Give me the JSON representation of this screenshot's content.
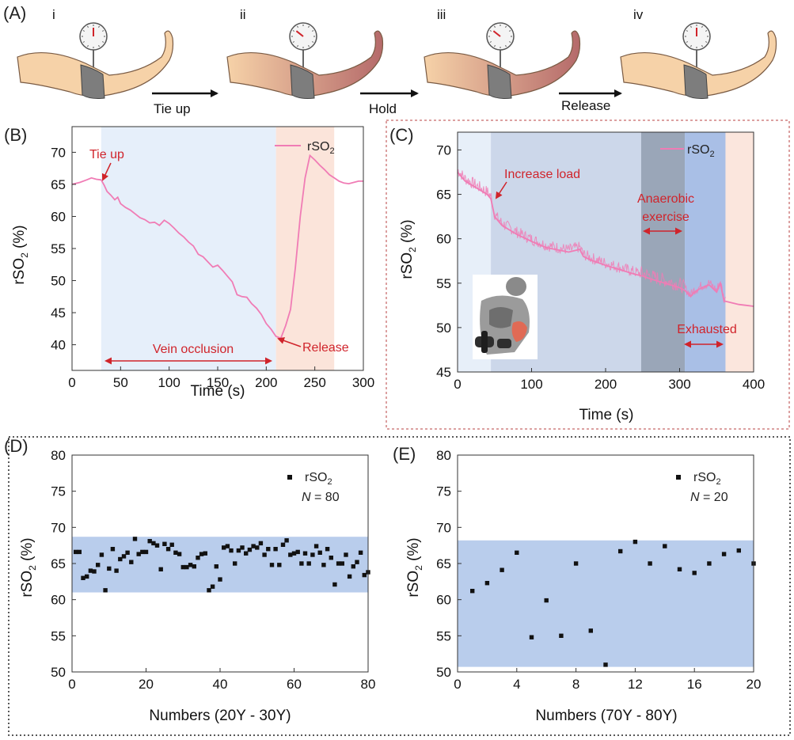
{
  "panels": {
    "a": {
      "letter": "(A)",
      "stage_labels": [
        "i",
        "ii",
        "iii",
        "iv"
      ],
      "steps": [
        "Tie up",
        "Hold",
        "Release"
      ]
    },
    "b": {
      "letter": "(B)"
    },
    "c": {
      "letter": "(C)"
    },
    "d": {
      "letter": "(D)"
    },
    "e": {
      "letter": "(E)"
    },
    "axis": {
      "rso_prefix": "rSO",
      "subscript": "2",
      "percent_unit": " (%)"
    },
    "legend": {
      "prefix": "rSO",
      "subscript": "2"
    },
    "colors": {
      "line": "#f07cb5",
      "band_blue": "#c9dcf2",
      "band_pink": "#fbe1d6",
      "dot_band": "#b9cdec",
      "annotation": "#d0242b"
    }
  },
  "chart_data": [
    {
      "panel": "B",
      "type": "line",
      "xlabel": "Time (s)",
      "ylabel": "rSO2 (%)",
      "xlim": [
        0,
        300
      ],
      "ylim": [
        36,
        74
      ],
      "xticks": [
        0,
        50,
        100,
        150,
        200,
        250,
        300
      ],
      "yticks": [
        40,
        45,
        50,
        55,
        60,
        65,
        70
      ],
      "legend": "rSO2",
      "legend_position": "top-right",
      "shaded_regions": [
        {
          "x0": 30,
          "x1": 210,
          "color": "blue"
        },
        {
          "x0": 210,
          "x1": 270,
          "color": "pink"
        }
      ],
      "series": [
        {
          "name": "rSO2",
          "x": [
            0,
            8,
            15,
            20,
            25,
            30,
            33,
            36,
            40,
            44,
            47,
            50,
            55,
            60,
            65,
            70,
            75,
            80,
            85,
            90,
            95,
            100,
            105,
            110,
            115,
            120,
            125,
            130,
            135,
            140,
            145,
            150,
            155,
            160,
            165,
            170,
            175,
            180,
            185,
            190,
            195,
            200,
            205,
            210,
            215,
            220,
            225,
            230,
            235,
            240,
            245,
            250,
            255,
            260,
            265,
            270,
            275,
            280,
            285,
            290,
            295,
            300
          ],
          "y": [
            65.0,
            65.3,
            65.7,
            66.0,
            65.8,
            65.7,
            64.9,
            63.9,
            63.3,
            62.6,
            63.0,
            62.0,
            61.4,
            61.0,
            60.4,
            59.8,
            59.5,
            59.0,
            59.1,
            58.6,
            59.4,
            58.9,
            58.2,
            57.4,
            56.8,
            56.0,
            55.4,
            54.1,
            53.7,
            52.9,
            52.1,
            52.4,
            51.6,
            50.7,
            49.8,
            47.8,
            47.5,
            47.4,
            46.4,
            45.7,
            44.7,
            43.3,
            42.4,
            41.3,
            41.0,
            43.0,
            45.5,
            52.0,
            60.0,
            66.0,
            69.5,
            68.8,
            68.0,
            67.3,
            66.5,
            66.0,
            65.5,
            65.2,
            65.1,
            65.3,
            65.5,
            65.5
          ]
        }
      ],
      "annotations": [
        "Tie up",
        "Release",
        "Vein occlusion"
      ]
    },
    {
      "panel": "C",
      "type": "line",
      "xlabel": "Time (s)",
      "ylabel": "rSO2 (%)",
      "xlim": [
        0,
        400
      ],
      "ylim": [
        45,
        72
      ],
      "xticks": [
        0,
        100,
        200,
        300,
        400
      ],
      "yticks": [
        45,
        50,
        55,
        60,
        65,
        70
      ],
      "legend": "rSO2",
      "legend_position": "top-right",
      "shaded_regions": [
        {
          "x0": 0,
          "x1": 45,
          "color": "lightblue"
        },
        {
          "x0": 45,
          "x1": 248,
          "color": "midblue"
        },
        {
          "x0": 248,
          "x1": 307,
          "color": "gray"
        },
        {
          "x0": 307,
          "x1": 362,
          "color": "blue"
        },
        {
          "x0": 362,
          "x1": 400,
          "color": "pink"
        }
      ],
      "series": [
        {
          "name": "rSO2",
          "x": [
            0,
            5,
            10,
            20,
            30,
            40,
            45,
            50,
            60,
            80,
            100,
            120,
            150,
            165,
            170,
            180,
            200,
            220,
            240,
            250,
            260,
            280,
            300,
            307,
            315,
            320,
            330,
            340,
            350,
            355,
            360,
            370,
            380,
            390,
            400
          ],
          "y": [
            67.5,
            67.0,
            66.5,
            66.0,
            65.5,
            65.0,
            64.5,
            62.5,
            61.5,
            60.5,
            59.7,
            59.0,
            58.5,
            58.8,
            58.0,
            57.6,
            57.0,
            56.5,
            56.0,
            55.8,
            55.5,
            55.0,
            54.5,
            54.2,
            53.5,
            54.0,
            54.5,
            54.8,
            54.0,
            55.0,
            53.0,
            52.8,
            52.6,
            52.5,
            52.4
          ]
        }
      ],
      "annotations": [
        "Increase load",
        "Anaerobic",
        "exercise",
        "Exhausted"
      ]
    },
    {
      "panel": "D",
      "type": "scatter",
      "xlabel": "Numbers (20Y - 30Y)",
      "ylabel": "rSO2 (%)",
      "xlim": [
        0,
        80
      ],
      "ylim": [
        50,
        80
      ],
      "xticks": [
        0,
        20,
        40,
        60,
        80
      ],
      "yticks": [
        50,
        55,
        60,
        65,
        70,
        75,
        80
      ],
      "legend": "rSO2",
      "legend_position": "top-right",
      "n_label": "N",
      "n_value": "= 80",
      "band": [
        61,
        68.7
      ],
      "series": [
        {
          "name": "rSO2",
          "x": [
            1,
            2,
            3,
            4,
            5,
            6,
            7,
            8,
            9,
            10,
            11,
            12,
            13,
            14,
            15,
            16,
            17,
            18,
            19,
            20,
            21,
            22,
            23,
            24,
            25,
            26,
            27,
            28,
            29,
            30,
            31,
            32,
            33,
            34,
            35,
            36,
            37,
            38,
            39,
            40,
            41,
            42,
            43,
            44,
            45,
            46,
            47,
            48,
            49,
            50,
            51,
            52,
            53,
            54,
            55,
            56,
            57,
            58,
            59,
            60,
            61,
            62,
            63,
            64,
            65,
            66,
            67,
            68,
            69,
            70,
            71,
            72,
            73,
            74,
            75,
            76,
            77,
            78,
            79,
            80
          ],
          "y": [
            66.6,
            66.6,
            63.0,
            63.2,
            64.0,
            63.9,
            64.8,
            66.2,
            61.3,
            64.3,
            67.0,
            64.0,
            65.6,
            66.0,
            66.5,
            65.2,
            68.4,
            66.3,
            66.6,
            66.6,
            68.1,
            67.8,
            67.5,
            64.2,
            67.7,
            67.0,
            67.6,
            66.5,
            66.3,
            64.5,
            64.5,
            64.8,
            64.6,
            65.8,
            66.3,
            66.4,
            61.3,
            61.8,
            64.6,
            62.8,
            67.2,
            67.4,
            66.8,
            65.0,
            66.8,
            67.2,
            66.4,
            66.9,
            67.4,
            67.2,
            67.8,
            66.2,
            67.0,
            64.8,
            67.0,
            64.8,
            67.6,
            68.2,
            66.2,
            66.4,
            66.6,
            65.0,
            66.4,
            65.0,
            66.2,
            67.4,
            66.5,
            64.8,
            67.0,
            65.8,
            62.1,
            65.0,
            65.0,
            66.2,
            63.2,
            64.6,
            65.2,
            66.5,
            63.4,
            63.8
          ]
        }
      ]
    },
    {
      "panel": "E",
      "type": "scatter",
      "xlabel": "Numbers (70Y - 80Y)",
      "ylabel": "rSO2 (%)",
      "xlim": [
        0,
        20
      ],
      "ylim": [
        50,
        80
      ],
      "xticks": [
        0,
        4,
        8,
        12,
        16,
        20
      ],
      "yticks": [
        50,
        55,
        60,
        65,
        70,
        75,
        80
      ],
      "legend": "rSO2",
      "legend_position": "top-right",
      "n_label": "N",
      "n_value": "= 20",
      "band": [
        50.7,
        68.2
      ],
      "series": [
        {
          "name": "rSO2",
          "x": [
            1,
            2,
            3,
            4,
            5,
            6,
            7,
            8,
            9,
            10,
            11,
            12,
            13,
            14,
            15,
            16,
            17,
            18,
            19,
            20
          ],
          "y": [
            61.2,
            62.3,
            64.1,
            66.5,
            54.8,
            59.9,
            55.0,
            65.0,
            55.7,
            51.0,
            66.7,
            68.0,
            65.0,
            67.4,
            64.2,
            63.7,
            65.0,
            66.3,
            66.8,
            65.0
          ]
        }
      ]
    }
  ]
}
